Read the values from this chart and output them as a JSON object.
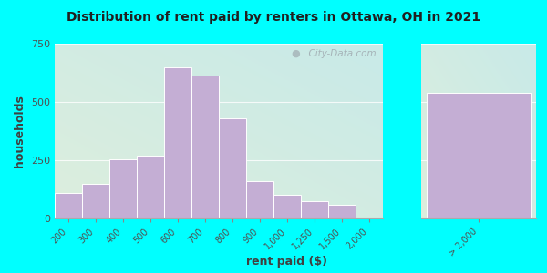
{
  "title": "Distribution of rent paid by renters in Ottawa, OH in 2021",
  "xlabel": "rent paid ($)",
  "ylabel": "households",
  "background_outer": "#00FFFF",
  "bar_color": "#c4aed4",
  "bar_edge_color": "#ffffff",
  "categories": [
    "200",
    "300",
    "400",
    "500",
    "600",
    "700",
    "800",
    "900",
    "1,000",
    "1,250",
    "1,500",
    "2,000",
    "> 2,000"
  ],
  "values": [
    110,
    150,
    255,
    270,
    650,
    615,
    430,
    160,
    100,
    75,
    60,
    0,
    540
  ],
  "ylim": [
    0,
    750
  ],
  "yticks": [
    0,
    250,
    500,
    750
  ],
  "watermark": "  City-Data.com",
  "figsize": [
    6.0,
    3.0
  ],
  "dpi": 100,
  "gradient_top_left": "#ddeedd",
  "gradient_bottom_right": "#c8eae8"
}
